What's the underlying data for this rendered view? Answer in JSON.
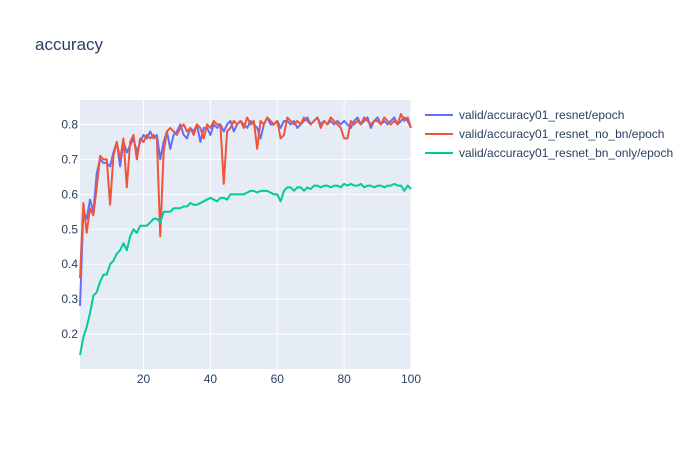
{
  "chart_data": {
    "type": "line",
    "title": "accuracy",
    "xlabel": "",
    "ylabel": "",
    "xlim": [
      1,
      100
    ],
    "ylim": [
      0.1,
      0.87
    ],
    "x_ticks": [
      20,
      40,
      60,
      80,
      100
    ],
    "y_ticks": [
      0.2,
      0.3,
      0.4,
      0.5,
      0.6,
      0.7,
      0.8
    ],
    "grid": true,
    "legend_position": "right",
    "colors": {
      "plot_bg": "#e5ecf6",
      "grid": "#ffffff",
      "text": "#2a3f5f"
    },
    "series": [
      {
        "name": "valid/accuracy01_resnet/epoch",
        "color": "#636efa",
        "x": [
          1,
          2,
          3,
          4,
          5,
          6,
          7,
          8,
          9,
          10,
          11,
          12,
          13,
          14,
          15,
          16,
          17,
          18,
          19,
          20,
          21,
          22,
          23,
          24,
          25,
          26,
          27,
          28,
          29,
          30,
          31,
          32,
          33,
          34,
          35,
          36,
          37,
          38,
          39,
          40,
          41,
          42,
          43,
          44,
          45,
          46,
          47,
          48,
          49,
          50,
          51,
          52,
          53,
          54,
          55,
          56,
          57,
          58,
          59,
          60,
          61,
          62,
          63,
          64,
          65,
          66,
          67,
          68,
          69,
          70,
          71,
          72,
          73,
          74,
          75,
          76,
          77,
          78,
          79,
          80,
          81,
          82,
          83,
          84,
          85,
          86,
          87,
          88,
          89,
          90,
          91,
          92,
          93,
          94,
          95,
          96,
          97,
          98,
          99,
          100
        ],
        "values": [
          0.28,
          0.55,
          0.53,
          0.585,
          0.55,
          0.66,
          0.7,
          0.69,
          0.69,
          0.68,
          0.72,
          0.75,
          0.68,
          0.75,
          0.72,
          0.74,
          0.76,
          0.72,
          0.75,
          0.77,
          0.76,
          0.78,
          0.76,
          0.77,
          0.7,
          0.75,
          0.78,
          0.73,
          0.77,
          0.78,
          0.8,
          0.77,
          0.76,
          0.79,
          0.78,
          0.8,
          0.75,
          0.79,
          0.79,
          0.77,
          0.8,
          0.79,
          0.8,
          0.78,
          0.8,
          0.81,
          0.78,
          0.8,
          0.81,
          0.8,
          0.79,
          0.81,
          0.8,
          0.79,
          0.76,
          0.8,
          0.82,
          0.8,
          0.8,
          0.81,
          0.79,
          0.81,
          0.81,
          0.8,
          0.81,
          0.79,
          0.8,
          0.81,
          0.82,
          0.8,
          0.81,
          0.82,
          0.8,
          0.81,
          0.8,
          0.81,
          0.8,
          0.81,
          0.8,
          0.81,
          0.8,
          0.79,
          0.81,
          0.82,
          0.8,
          0.81,
          0.82,
          0.79,
          0.81,
          0.82,
          0.8,
          0.81,
          0.8,
          0.81,
          0.82,
          0.8,
          0.81,
          0.82,
          0.81,
          0.79
        ]
      },
      {
        "name": "valid/accuracy01_resnet_no_bn/epoch",
        "color": "#ef553b",
        "x": [
          1,
          2,
          3,
          4,
          5,
          6,
          7,
          8,
          9,
          10,
          11,
          12,
          13,
          14,
          15,
          16,
          17,
          18,
          19,
          20,
          21,
          22,
          23,
          24,
          25,
          26,
          27,
          28,
          29,
          30,
          31,
          32,
          33,
          34,
          35,
          36,
          37,
          38,
          39,
          40,
          41,
          42,
          43,
          44,
          45,
          46,
          47,
          48,
          49,
          50,
          51,
          52,
          53,
          54,
          55,
          56,
          57,
          58,
          59,
          60,
          61,
          62,
          63,
          64,
          65,
          66,
          67,
          68,
          69,
          70,
          71,
          72,
          73,
          74,
          75,
          76,
          77,
          78,
          79,
          80,
          81,
          82,
          83,
          84,
          85,
          86,
          87,
          88,
          89,
          90,
          91,
          92,
          93,
          94,
          95,
          96,
          97,
          98,
          99,
          100
        ],
        "values": [
          0.36,
          0.575,
          0.49,
          0.56,
          0.54,
          0.62,
          0.71,
          0.7,
          0.7,
          0.57,
          0.71,
          0.75,
          0.7,
          0.76,
          0.62,
          0.75,
          0.77,
          0.7,
          0.76,
          0.75,
          0.77,
          0.76,
          0.77,
          0.76,
          0.48,
          0.72,
          0.78,
          0.79,
          0.78,
          0.77,
          0.79,
          0.8,
          0.78,
          0.79,
          0.77,
          0.8,
          0.79,
          0.76,
          0.8,
          0.79,
          0.81,
          0.8,
          0.8,
          0.63,
          0.78,
          0.79,
          0.81,
          0.8,
          0.81,
          0.79,
          0.82,
          0.8,
          0.81,
          0.73,
          0.81,
          0.8,
          0.82,
          0.81,
          0.8,
          0.81,
          0.76,
          0.77,
          0.82,
          0.81,
          0.8,
          0.81,
          0.8,
          0.82,
          0.81,
          0.8,
          0.81,
          0.82,
          0.79,
          0.81,
          0.8,
          0.82,
          0.81,
          0.8,
          0.79,
          0.76,
          0.76,
          0.81,
          0.8,
          0.81,
          0.8,
          0.82,
          0.81,
          0.8,
          0.81,
          0.81,
          0.8,
          0.82,
          0.81,
          0.8,
          0.81,
          0.8,
          0.83,
          0.81,
          0.82,
          0.79
        ]
      },
      {
        "name": "valid/accuracy01_resnet_bn_only/epoch",
        "color": "#00cc96",
        "x": [
          1,
          2,
          3,
          4,
          5,
          6,
          7,
          8,
          9,
          10,
          11,
          12,
          13,
          14,
          15,
          16,
          17,
          18,
          19,
          20,
          21,
          22,
          23,
          24,
          25,
          26,
          27,
          28,
          29,
          30,
          31,
          32,
          33,
          34,
          35,
          36,
          37,
          38,
          39,
          40,
          41,
          42,
          43,
          44,
          45,
          46,
          47,
          48,
          49,
          50,
          51,
          52,
          53,
          54,
          55,
          56,
          57,
          58,
          59,
          60,
          61,
          62,
          63,
          64,
          65,
          66,
          67,
          68,
          69,
          70,
          71,
          72,
          73,
          74,
          75,
          76,
          77,
          78,
          79,
          80,
          81,
          82,
          83,
          84,
          85,
          86,
          87,
          88,
          89,
          90,
          91,
          92,
          93,
          94,
          95,
          96,
          97,
          98,
          99,
          100
        ],
        "values": [
          0.14,
          0.19,
          0.22,
          0.26,
          0.31,
          0.32,
          0.35,
          0.37,
          0.37,
          0.4,
          0.41,
          0.43,
          0.44,
          0.46,
          0.44,
          0.48,
          0.5,
          0.49,
          0.51,
          0.51,
          0.51,
          0.52,
          0.53,
          0.53,
          0.52,
          0.55,
          0.55,
          0.55,
          0.56,
          0.56,
          0.56,
          0.565,
          0.565,
          0.575,
          0.57,
          0.57,
          0.575,
          0.58,
          0.585,
          0.59,
          0.585,
          0.58,
          0.59,
          0.59,
          0.585,
          0.6,
          0.6,
          0.6,
          0.6,
          0.6,
          0.605,
          0.61,
          0.61,
          0.605,
          0.61,
          0.61,
          0.61,
          0.605,
          0.6,
          0.6,
          0.58,
          0.61,
          0.62,
          0.62,
          0.61,
          0.62,
          0.62,
          0.61,
          0.62,
          0.615,
          0.625,
          0.625,
          0.62,
          0.625,
          0.625,
          0.62,
          0.625,
          0.625,
          0.62,
          0.63,
          0.625,
          0.63,
          0.625,
          0.625,
          0.63,
          0.62,
          0.625,
          0.625,
          0.62,
          0.625,
          0.625,
          0.62,
          0.625,
          0.625,
          0.63,
          0.625,
          0.625,
          0.61,
          0.625,
          0.615
        ]
      }
    ]
  }
}
